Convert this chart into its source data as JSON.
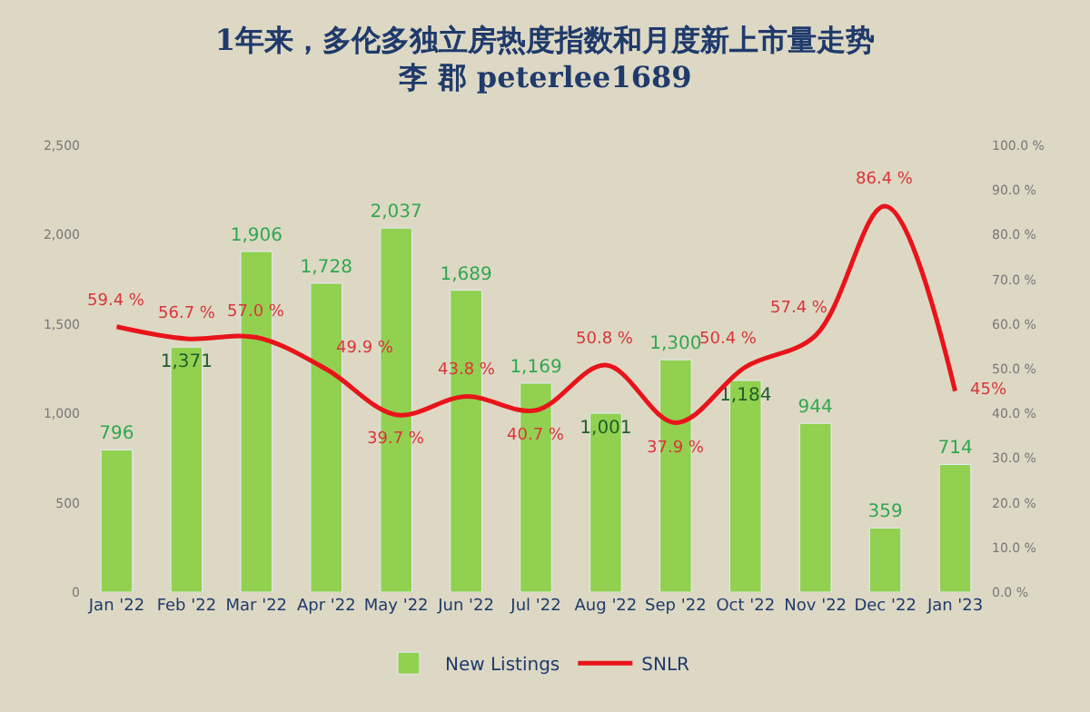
{
  "chart_data": {
    "type": "bar",
    "title": "1年来，多伦多独立房热度指数和月度新上市量走势",
    "subtitle": "李 郡 peterlee1689",
    "categories": [
      "Jan '22",
      "Feb '22",
      "Mar '22",
      "Apr '22",
      "May '22",
      "Jun '22",
      "Jul '22",
      "Aug '22",
      "Sep '22",
      "Oct '22",
      "Nov '22",
      "Dec '22",
      "Jan '23"
    ],
    "series": [
      {
        "name": "New Listings",
        "color": "#92d050",
        "values": [
          796,
          1371,
          1906,
          1728,
          2037,
          1689,
          1169,
          1001,
          1300,
          1184,
          944,
          359,
          714
        ],
        "value_labels": [
          "796",
          "1,371",
          "1,906",
          "1,728",
          "2,037",
          "1,689",
          "1,169",
          "1,001",
          "1,300",
          "1,184",
          "944",
          "359",
          "714"
        ]
      },
      {
        "name": "SNLR",
        "type": "line",
        "axis": "y2",
        "color": "#e8141a",
        "values": [
          59.4,
          56.7,
          57.0,
          49.9,
          39.7,
          43.8,
          40.7,
          50.8,
          37.9,
          50.4,
          57.4,
          86.4,
          45
        ],
        "value_labels": [
          "59.4 %",
          "56.7 %",
          "57.0 %",
          "49.9 %",
          "39.7 %",
          "43.8 %",
          "40.7 %",
          "50.8 %",
          "37.9 %",
          "50.4 %",
          "57.4 %",
          "86.4 %",
          "45%"
        ]
      }
    ],
    "ylim": [
      0,
      2500
    ],
    "yticks": [
      0,
      500,
      {
        "value": 1000,
        "label": "1,000"
      },
      {
        "value": 1500,
        "label": "1,500"
      },
      {
        "value": 2000,
        "label": "2,000"
      },
      {
        "value": 2500,
        "label": "2,500"
      }
    ],
    "y2lim": [
      0,
      100
    ],
    "y2ticks": [
      {
        "value": 0,
        "label": "0.0 %"
      },
      {
        "value": 10,
        "label": "10.0 %"
      },
      {
        "value": 20,
        "label": "20.0 %"
      },
      {
        "value": 30,
        "label": "30.0 %"
      },
      {
        "value": 40,
        "label": "40.0 %"
      },
      {
        "value": 50,
        "label": "50.0 %"
      },
      {
        "value": 60,
        "label": "60.0 %"
      },
      {
        "value": 70,
        "label": "70.0 %"
      },
      {
        "value": 80,
        "label": "80.0 %"
      },
      {
        "value": 90,
        "label": "90.0 %"
      },
      {
        "value": 100,
        "label": "100.0 %"
      }
    ],
    "legend": "bottom",
    "grid": false,
    "marker": "none",
    "line_style": "solid"
  }
}
